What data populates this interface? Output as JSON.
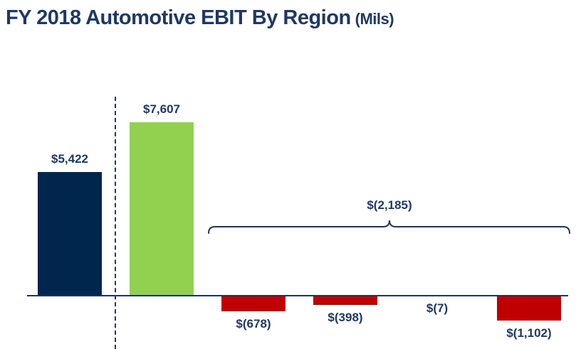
{
  "title": {
    "main": "FY 2018 Automotive EBIT By Region",
    "suffix": "(Mils)"
  },
  "colors": {
    "navy": "#00264D",
    "green": "#92D050",
    "red": "#C00000",
    "text": "#1F3864",
    "line": "#17375E"
  },
  "chart_data": {
    "type": "bar",
    "title": "FY 2018 Automotive EBIT By Region (Mils)",
    "unit": "USD millions",
    "grid": false,
    "legend": false,
    "ylim": [
      -1200,
      7700
    ],
    "bars": [
      {
        "label": "$5,422",
        "value": 5422,
        "color_key": "navy"
      },
      {
        "label": "$7,607",
        "value": 7607,
        "color_key": "green"
      },
      {
        "label": "$(678)",
        "value": -678,
        "color_key": "red"
      },
      {
        "label": "$(398)",
        "value": -398,
        "color_key": "red"
      },
      {
        "label": "$(7)",
        "value": -7,
        "color_key": "red"
      },
      {
        "label": "$(1,102)",
        "value": -1102,
        "color_key": "red"
      }
    ],
    "separator": {
      "style": "dashed-vertical",
      "after_bar_index": 0
    },
    "annotations": [
      {
        "type": "brace",
        "label": "$(2,185)",
        "value": -2185,
        "covers_bar_indices": [
          2,
          3,
          4,
          5
        ]
      }
    ]
  }
}
